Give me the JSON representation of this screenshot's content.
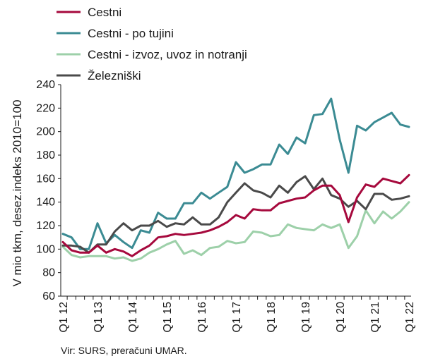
{
  "chart_data": {
    "type": "line",
    "title": "",
    "xlabel": "",
    "ylabel": "V mio tkm, desez.indeks 2010=100",
    "ylim": [
      60,
      240
    ],
    "yticks": [
      60,
      80,
      100,
      120,
      140,
      160,
      180,
      200,
      220,
      240
    ],
    "grid": false,
    "legend_position": "top-left",
    "x_tick_labels": [
      "Q1 12",
      "Q1 13",
      "Q1 14",
      "Q1 15",
      "Q1 16",
      "Q1 17",
      "Q1 18",
      "Q1 19",
      "Q1 20",
      "Q1 21",
      "Q1 22"
    ],
    "x": [
      "Q1 12",
      "Q2 12",
      "Q3 12",
      "Q4 12",
      "Q1 13",
      "Q2 13",
      "Q3 13",
      "Q4 13",
      "Q1 14",
      "Q2 14",
      "Q3 14",
      "Q4 14",
      "Q1 15",
      "Q2 15",
      "Q3 15",
      "Q4 15",
      "Q1 16",
      "Q2 16",
      "Q3 16",
      "Q4 16",
      "Q1 17",
      "Q2 17",
      "Q3 17",
      "Q4 17",
      "Q1 18",
      "Q2 18",
      "Q3 18",
      "Q4 18",
      "Q1 19",
      "Q2 19",
      "Q3 19",
      "Q4 19",
      "Q1 20",
      "Q2 20",
      "Q3 20",
      "Q4 20",
      "Q1 21",
      "Q2 21",
      "Q3 21",
      "Q4 21",
      "Q1 22"
    ],
    "series": [
      {
        "name": "Cestni",
        "color": "#a6093d",
        "values": [
          106,
          99,
          97,
          97,
          103,
          97,
          100,
          98,
          94,
          99,
          103,
          110,
          111,
          113,
          112,
          113,
          114,
          116,
          119,
          123,
          129,
          126,
          134,
          133,
          133,
          139,
          141,
          143,
          144,
          150,
          154,
          154,
          146,
          123,
          144,
          155,
          153,
          160,
          158,
          156,
          163
        ]
      },
      {
        "name": "Cestni - po tujini",
        "color": "#3b8b93",
        "values": [
          113,
          110,
          100,
          100,
          122,
          105,
          112,
          106,
          101,
          116,
          114,
          131,
          126,
          126,
          139,
          139,
          148,
          143,
          148,
          153,
          174,
          165,
          168,
          172,
          172,
          189,
          181,
          195,
          190,
          214,
          215,
          228,
          193,
          165,
          205,
          201,
          208,
          212,
          216,
          206,
          204
        ]
      },
      {
        "name": "Cestni - izvoz, uvoz in notranji",
        "color": "#9dd0a9",
        "values": [
          102,
          95,
          93,
          94,
          94,
          94,
          92,
          93,
          90,
          92,
          97,
          100,
          104,
          107,
          96,
          99,
          95,
          101,
          102,
          107,
          105,
          106,
          115,
          114,
          111,
          112,
          121,
          118,
          117,
          116,
          121,
          118,
          121,
          101,
          111,
          133,
          122,
          132,
          126,
          132,
          140
        ]
      },
      {
        "name": "Železniški",
        "color": "#4a4a4a",
        "values": [
          103,
          103,
          102,
          97,
          104,
          104,
          115,
          122,
          116,
          120,
          120,
          124,
          119,
          122,
          121,
          127,
          121,
          121,
          127,
          140,
          148,
          156,
          150,
          148,
          144,
          154,
          148,
          157,
          162,
          151,
          160,
          146,
          143,
          136,
          141,
          134,
          147,
          147,
          142,
          143,
          145
        ]
      }
    ],
    "source": "Vir: SURS, preračuni UMAR."
  }
}
